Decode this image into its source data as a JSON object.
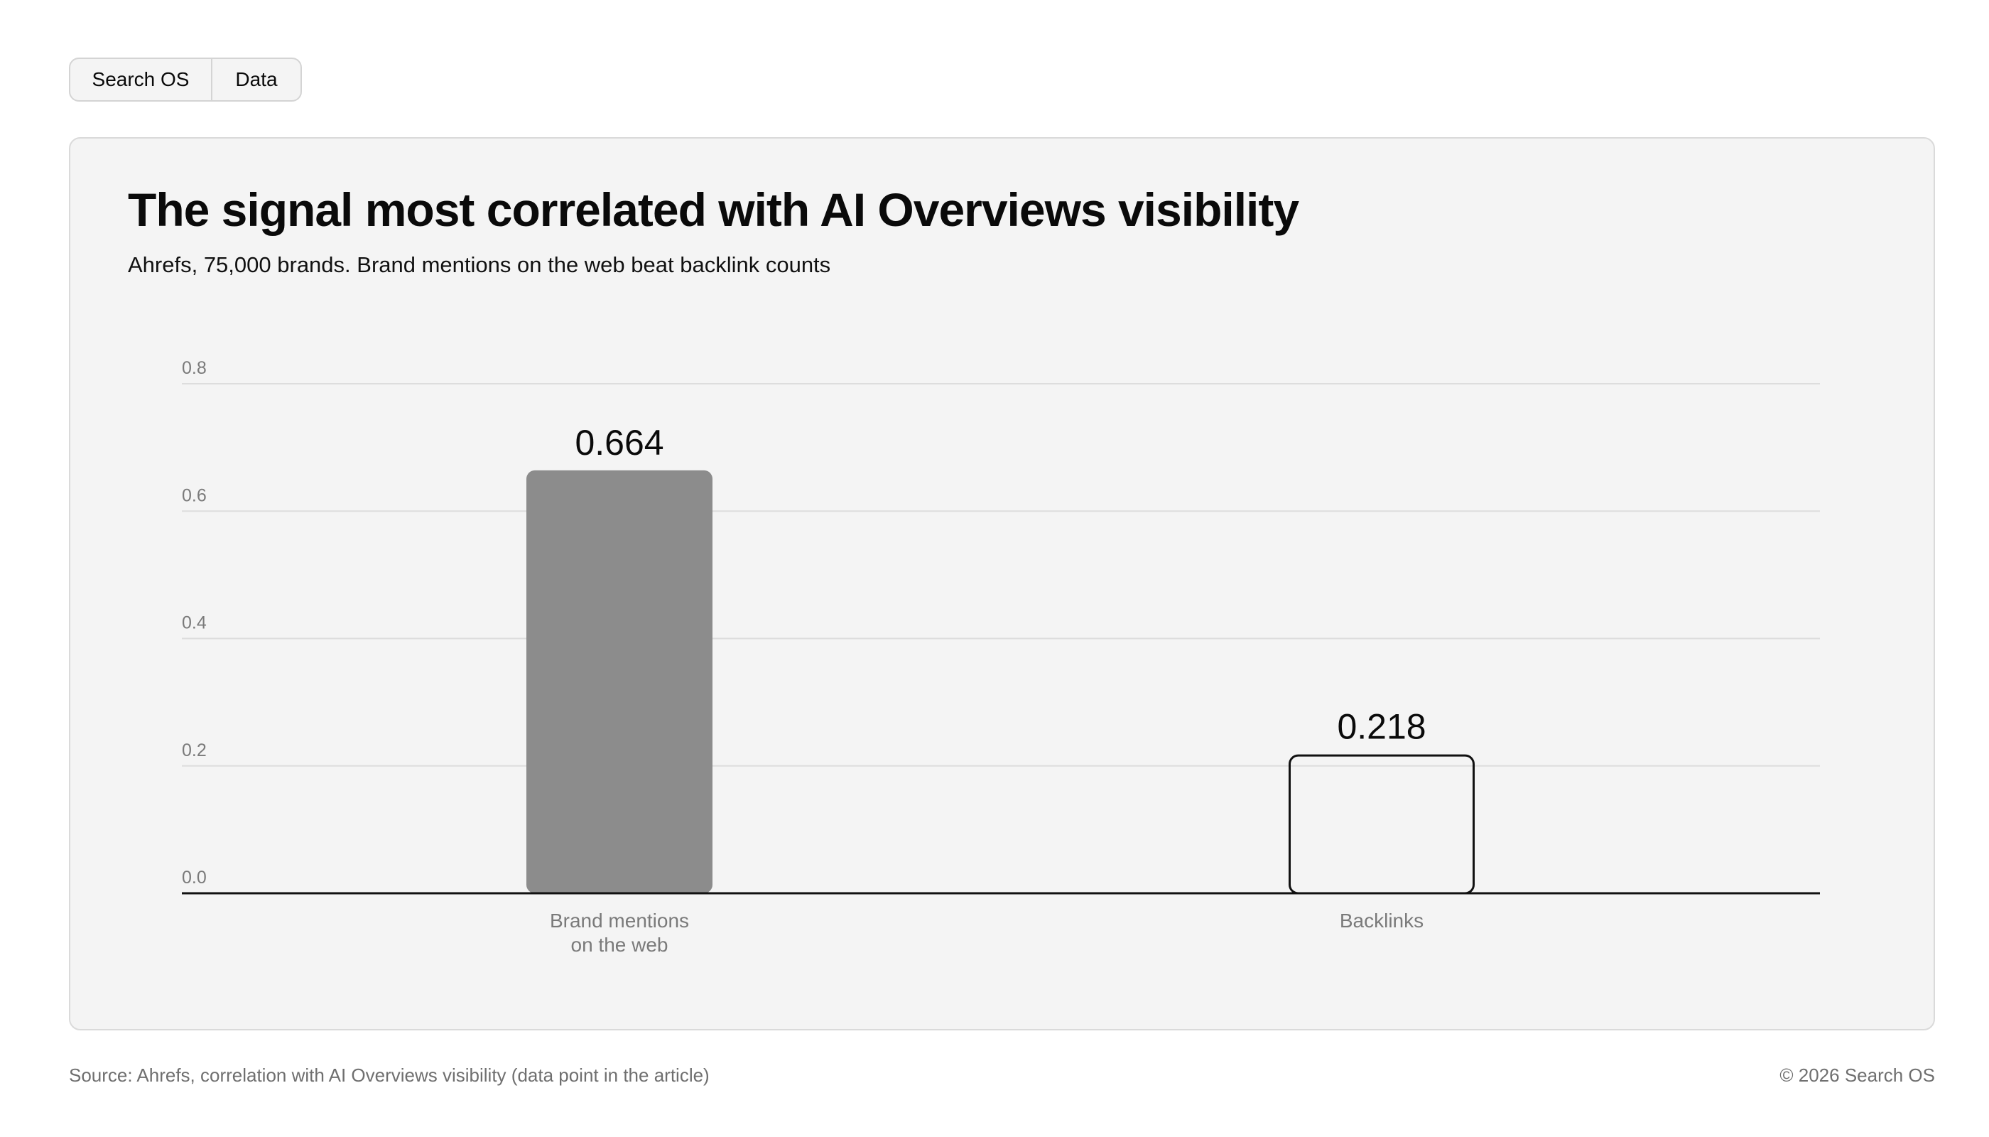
{
  "tabs": [
    {
      "label": "Search OS"
    },
    {
      "label": "Data"
    }
  ],
  "card": {
    "title": "The signal most correlated with AI Overviews visibility",
    "subtitle": "Ahrefs, 75,000 brands. Brand mentions on the web beat backlink counts"
  },
  "chart_data": {
    "type": "bar",
    "categories": [
      "Brand mentions on the web",
      "Backlinks"
    ],
    "category_lines": [
      [
        "Brand mentions",
        "on the web"
      ],
      [
        "Backlinks"
      ]
    ],
    "values": [
      0.664,
      0.218
    ],
    "value_labels": [
      "0.664",
      "0.218"
    ],
    "ylim": [
      0,
      0.8
    ],
    "yticks": [
      "0.0",
      "0.2",
      "0.4",
      "0.6",
      "0.8"
    ],
    "grid": true,
    "bar_styles": [
      {
        "fill": "#8c8c8c",
        "stroke": "none"
      },
      {
        "fill": "none",
        "stroke": "#111111"
      }
    ],
    "colors": {
      "grid": "#dddddd",
      "axis": "#111111",
      "tick_text": "#7a7a7a"
    }
  },
  "footer": {
    "source": "Source: Ahrefs, correlation with AI Overviews visibility (data point in the article)",
    "copyright": "© 2026 Search OS"
  }
}
